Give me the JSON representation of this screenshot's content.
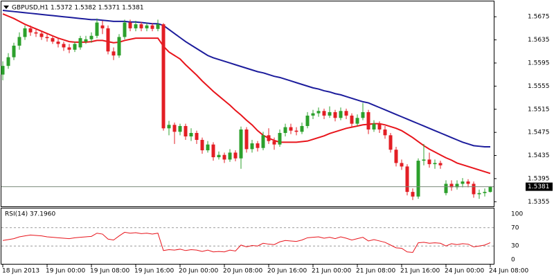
{
  "chart_data": [
    {
      "type": "candlestick",
      "title": "GBPUSD,H1  1.5372 1.5382 1.5371 1.5381",
      "categories": [
        "18 Jun 2013",
        null,
        null,
        null,
        null,
        null,
        null,
        null,
        "19 Jun 00:00",
        null,
        null,
        null,
        null,
        null,
        null,
        null,
        "19 Jun 08:00",
        null,
        null,
        null,
        null,
        null,
        null,
        null,
        "19 Jun 16:00",
        null,
        null,
        null,
        null,
        null,
        null,
        null,
        "20 Jun 00:00",
        null,
        null,
        null,
        null,
        null,
        null,
        null,
        "20 Jun 08:00",
        null,
        null,
        null,
        null,
        null,
        null,
        null,
        "20 Jun 16:00",
        null,
        null,
        null,
        null,
        null,
        null,
        null,
        "21 Jun 00:00",
        null,
        null,
        null,
        null,
        null,
        null,
        null,
        "21 Jun 08:00",
        null,
        null,
        null,
        null,
        null,
        null,
        null,
        "21 Jun 16:00",
        null,
        null,
        null,
        null,
        null,
        null,
        null,
        "24 Jun 00:00",
        null,
        null,
        null,
        null,
        null,
        null,
        null,
        "24 Jun 08:00"
      ],
      "open": [
        1.5575,
        1.559,
        1.5605,
        1.5625,
        1.564,
        1.5655,
        1.5648,
        1.5646,
        1.564,
        1.5638,
        1.5632,
        1.5628,
        1.5622,
        1.5618,
        1.5622,
        1.5632,
        1.5636,
        1.5642,
        1.566,
        1.5655,
        1.5615,
        1.5608,
        1.564,
        1.5665,
        1.5655,
        1.5662,
        1.5655,
        1.566,
        1.5654,
        1.5662,
        1.5482,
        1.5488,
        1.5476,
        1.5486,
        1.5468,
        1.5474,
        1.5462,
        1.5444,
        1.5454,
        1.5432,
        1.5436,
        1.5428,
        1.544,
        1.543,
        1.548,
        1.5446,
        1.5456,
        1.5448,
        1.547,
        1.546,
        1.5454,
        1.5474,
        1.5484,
        1.5478,
        1.5476,
        1.5486,
        1.5504,
        1.5508,
        1.5512,
        1.5504,
        1.551,
        1.55,
        1.5512,
        1.5504,
        1.549,
        1.55,
        1.551,
        1.548,
        1.549,
        1.548,
        1.547,
        1.5445,
        1.5422,
        1.5416,
        1.5372,
        1.5364,
        1.5426,
        1.5428,
        1.542,
        1.5422,
        1.537,
        1.5386,
        1.538,
        1.5386,
        1.539,
        1.5386,
        1.5368,
        1.537,
        1.5372
      ],
      "high": [
        1.5598,
        1.5612,
        1.563,
        1.5648,
        1.566,
        1.566,
        1.5653,
        1.565,
        1.5645,
        1.5642,
        1.5638,
        1.5632,
        1.5628,
        1.5632,
        1.5642,
        1.5642,
        1.5648,
        1.5672,
        1.5668,
        1.566,
        1.5622,
        1.5645,
        1.567,
        1.567,
        1.5668,
        1.5666,
        1.5664,
        1.5664,
        1.567,
        1.5664,
        1.5495,
        1.5492,
        1.549,
        1.549,
        1.5482,
        1.5478,
        1.5466,
        1.546,
        1.5458,
        1.5442,
        1.544,
        1.5446,
        1.5444,
        1.5485,
        1.5484,
        1.5462,
        1.546,
        1.5476,
        1.5482,
        1.5466,
        1.548,
        1.549,
        1.549,
        1.5484,
        1.5492,
        1.551,
        1.5514,
        1.5518,
        1.5516,
        1.552,
        1.5514,
        1.5518,
        1.5516,
        1.5508,
        1.5506,
        1.5526,
        1.5514,
        1.5496,
        1.5494,
        1.5486,
        1.5474,
        1.545,
        1.5428,
        1.542,
        1.5378,
        1.543,
        1.5455,
        1.544,
        1.5428,
        1.5426,
        1.5392,
        1.5392,
        1.5392,
        1.5396,
        1.5394,
        1.539,
        1.5376,
        1.5378,
        1.5382
      ],
      "low": [
        1.5565,
        1.5585,
        1.56,
        1.5618,
        1.5635,
        1.5642,
        1.564,
        1.5635,
        1.5632,
        1.5628,
        1.5622,
        1.5616,
        1.5612,
        1.5614,
        1.5618,
        1.5628,
        1.563,
        1.5638,
        1.5645,
        1.561,
        1.56,
        1.5604,
        1.5636,
        1.565,
        1.565,
        1.565,
        1.565,
        1.565,
        1.565,
        1.5478,
        1.547,
        1.5455,
        1.547,
        1.5462,
        1.546,
        1.5455,
        1.5438,
        1.544,
        1.5426,
        1.5428,
        1.5422,
        1.5424,
        1.5425,
        1.5412,
        1.544,
        1.544,
        1.5442,
        1.5444,
        1.5455,
        1.5445,
        1.545,
        1.5468,
        1.5472,
        1.547,
        1.5472,
        1.5482,
        1.5498,
        1.5502,
        1.5498,
        1.55,
        1.5494,
        1.5496,
        1.5498,
        1.5484,
        1.5486,
        1.5496,
        1.5472,
        1.5476,
        1.5474,
        1.5464,
        1.544,
        1.5416,
        1.541,
        1.5366,
        1.5358,
        1.536,
        1.5418,
        1.5414,
        1.5412,
        1.5412,
        1.5366,
        1.5374,
        1.5376,
        1.538,
        1.538,
        1.5362,
        1.536,
        1.5364,
        1.5371
      ],
      "close": [
        1.559,
        1.5605,
        1.5625,
        1.564,
        1.5655,
        1.5648,
        1.5646,
        1.564,
        1.5638,
        1.5632,
        1.5628,
        1.5622,
        1.5618,
        1.5628,
        1.5638,
        1.5636,
        1.5642,
        1.5665,
        1.5655,
        1.5615,
        1.5608,
        1.564,
        1.5665,
        1.5655,
        1.5662,
        1.5655,
        1.566,
        1.5654,
        1.5662,
        1.5482,
        1.5488,
        1.5476,
        1.5486,
        1.5468,
        1.5474,
        1.5462,
        1.5444,
        1.5454,
        1.5432,
        1.5436,
        1.5428,
        1.544,
        1.543,
        1.548,
        1.5446,
        1.5456,
        1.5448,
        1.547,
        1.546,
        1.5454,
        1.5474,
        1.5484,
        1.5478,
        1.5476,
        1.5486,
        1.5504,
        1.5508,
        1.5512,
        1.5504,
        1.551,
        1.55,
        1.5512,
        1.5504,
        1.549,
        1.55,
        1.551,
        1.548,
        1.549,
        1.548,
        1.547,
        1.5445,
        1.5422,
        1.5416,
        1.5372,
        1.5364,
        1.5426,
        1.5428,
        1.542,
        1.5422,
        1.5418,
        1.5386,
        1.538,
        1.5386,
        1.539,
        1.5386,
        1.5368,
        1.537,
        1.5372,
        1.5381
      ],
      "up_color": "#2ca02c",
      "down_color": "#e31e24",
      "overlays": [
        {
          "color": "#e8141b",
          "values": [
            1.568,
            1.5676,
            1.5672,
            1.5667,
            1.5662,
            1.5658,
            1.5654,
            1.565,
            1.5646,
            1.5642,
            1.5638,
            1.5635,
            1.5632,
            1.5631,
            1.5631,
            1.5631,
            1.5632,
            1.5634,
            1.5634,
            1.5632,
            1.563,
            1.5631,
            1.5634,
            1.5636,
            1.5638,
            1.5638,
            1.5638,
            1.5638,
            1.5638,
            1.5624,
            1.5614,
            1.5608,
            1.5602,
            1.5592,
            1.5583,
            1.5574,
            1.5564,
            1.5555,
            1.5546,
            1.5538,
            1.553,
            1.5522,
            1.5513,
            1.5505,
            1.5496,
            1.5488,
            1.5478,
            1.547,
            1.5465,
            1.5461,
            1.5458,
            1.5458,
            1.5458,
            1.5458,
            1.5459,
            1.546,
            1.5463,
            1.5466,
            1.5469,
            1.5473,
            1.5476,
            1.5479,
            1.5482,
            1.5484,
            1.5486,
            1.5488,
            1.5489,
            1.549,
            1.549,
            1.5488,
            1.5485,
            1.5482,
            1.5478,
            1.5472,
            1.5466,
            1.5459,
            1.5452,
            1.5446,
            1.5441,
            1.5436,
            1.5431,
            1.5427,
            1.5422,
            1.5419,
            1.5416,
            1.5413,
            1.541,
            1.5407,
            1.5404
          ]
        },
        {
          "color": "#1c1c9c",
          "values": [
            1.5686,
            1.5685,
            1.5684,
            1.5683,
            1.5682,
            1.5681,
            1.568,
            1.5679,
            1.5678,
            1.5677,
            1.5676,
            1.5675,
            1.5674,
            1.5673,
            1.5672,
            1.5671,
            1.567,
            1.567,
            1.5669,
            1.5668,
            1.5667,
            1.5667,
            1.5667,
            1.5666,
            1.5666,
            1.5665,
            1.5664,
            1.5663,
            1.5663,
            1.566,
            1.5653,
            1.5646,
            1.5639,
            1.5632,
            1.5626,
            1.562,
            1.5614,
            1.5608,
            1.5604,
            1.5601,
            1.5598,
            1.5595,
            1.5592,
            1.5589,
            1.5586,
            1.5583,
            1.558,
            1.5578,
            1.5575,
            1.5572,
            1.557,
            1.5567,
            1.5564,
            1.5561,
            1.5558,
            1.5555,
            1.5552,
            1.555,
            1.5547,
            1.5545,
            1.5542,
            1.554,
            1.5537,
            1.5534,
            1.5531,
            1.5528,
            1.5526,
            1.5522,
            1.5518,
            1.5514,
            1.551,
            1.5506,
            1.5502,
            1.5498,
            1.5494,
            1.549,
            1.5486,
            1.5482,
            1.5478,
            1.5474,
            1.547,
            1.5466,
            1.5462,
            1.5458,
            1.5455,
            1.5452,
            1.5451,
            1.545,
            1.545
          ]
        }
      ],
      "ylim": [
        1.5347,
        1.5698
      ],
      "yticks": [
        1.5675,
        1.5635,
        1.5595,
        1.5555,
        1.5515,
        1.5475,
        1.5435,
        1.5395,
        1.5355
      ]
    },
    {
      "type": "line",
      "title": "RSI(14) 37.1960",
      "color": "#e8141b",
      "values": [
        42,
        44,
        46,
        50,
        52,
        54,
        53,
        52,
        50,
        49,
        48,
        47,
        46,
        48,
        49,
        50,
        51,
        58,
        56,
        45,
        43,
        52,
        60,
        58,
        59,
        57,
        58,
        56,
        58,
        20,
        22,
        21,
        23,
        20,
        22,
        21,
        18,
        21,
        17,
        18,
        17,
        21,
        19,
        32,
        28,
        31,
        30,
        36,
        34,
        33,
        39,
        42,
        41,
        40,
        43,
        48,
        49,
        50,
        47,
        49,
        46,
        50,
        47,
        43,
        46,
        49,
        41,
        44,
        41,
        38,
        32,
        26,
        25,
        17,
        16,
        37,
        38,
        36,
        37,
        36,
        30,
        35,
        33,
        35,
        34,
        28,
        30,
        32,
        37.196
      ],
      "ylim": [
        0,
        100
      ],
      "yticks": [
        100,
        70,
        30,
        0
      ]
    }
  ]
}
